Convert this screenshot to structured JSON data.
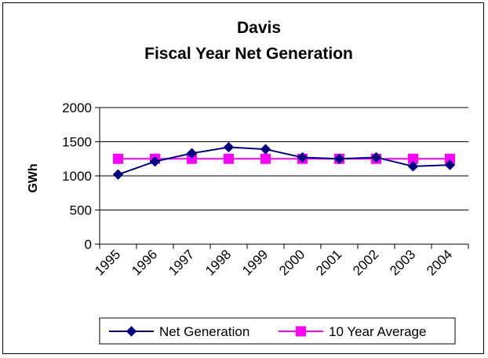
{
  "chart_data": {
    "type": "line",
    "title": "Davis",
    "subtitle": "Fiscal Year Net Generation",
    "xlabel": "",
    "ylabel": "GWh",
    "categories": [
      "1995",
      "1996",
      "1997",
      "1998",
      "1999",
      "2000",
      "2001",
      "2002",
      "2003",
      "2004"
    ],
    "ylim": [
      0,
      2000
    ],
    "yticks": [
      "0",
      "500",
      "1000",
      "1500",
      "2000"
    ],
    "grid": true,
    "legend_position": "bottom",
    "series": [
      {
        "name": "Net Generation",
        "color": "#000080",
        "marker": "diamond",
        "values": [
          1020,
          1210,
          1330,
          1420,
          1390,
          1270,
          1250,
          1270,
          1140,
          1160
        ]
      },
      {
        "name": "10 Year Average",
        "color": "#FF00FF",
        "marker": "square",
        "values": [
          1250,
          1250,
          1250,
          1250,
          1250,
          1250,
          1250,
          1250,
          1250,
          1250
        ]
      }
    ]
  }
}
